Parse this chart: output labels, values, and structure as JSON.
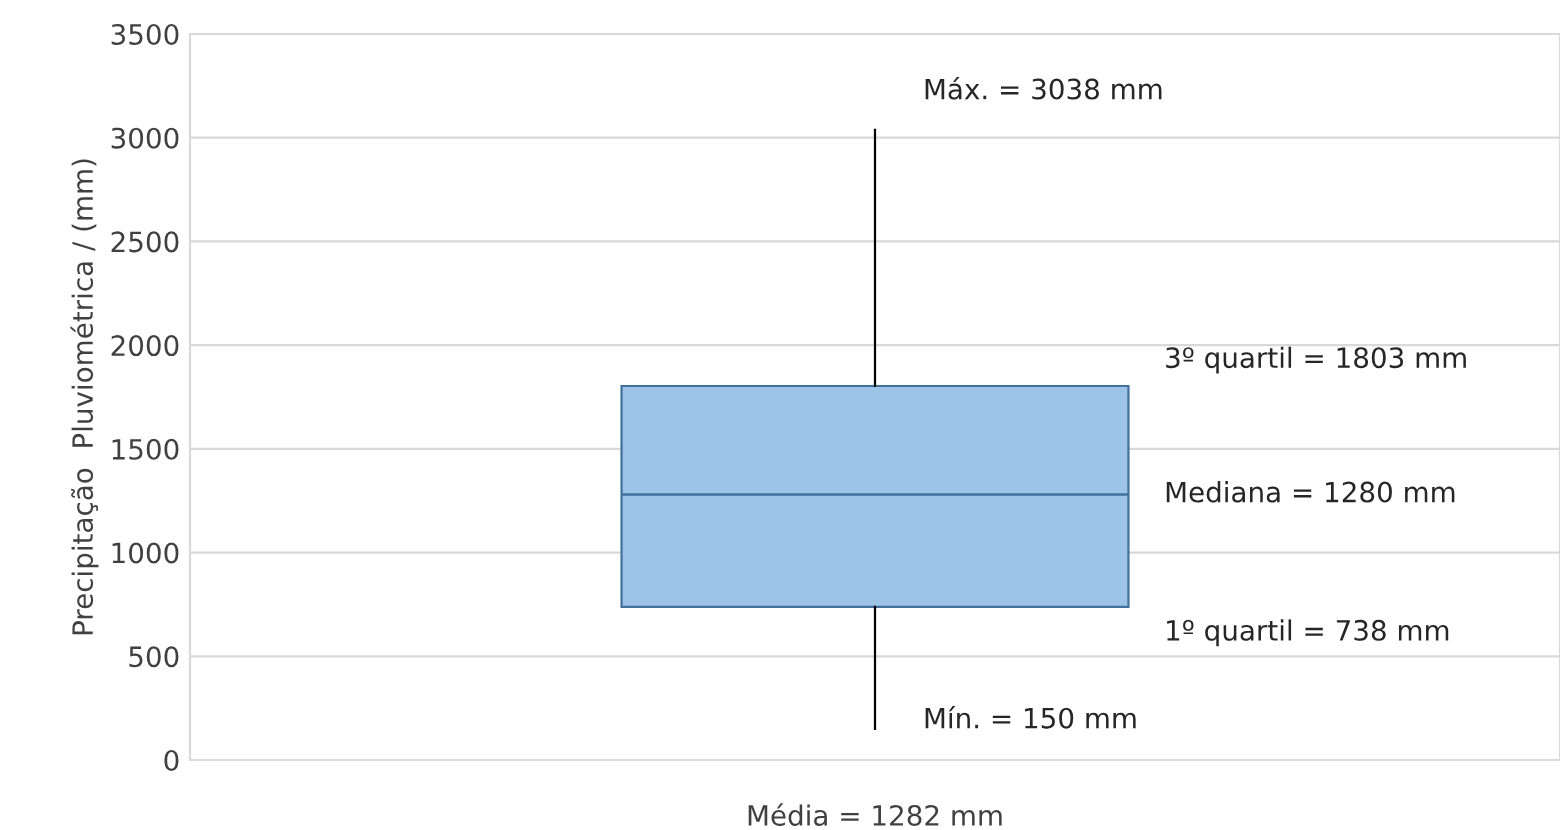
{
  "chart_data": {
    "type": "box",
    "ylabel": "Precipitação  Pluviométrica / (mm)",
    "categories": [
      "Média = 1282 mm"
    ],
    "boxes": [
      {
        "low": 150,
        "q1": 738,
        "median": 1280,
        "q3": 1803,
        "high": 3038
      }
    ],
    "color": "#9dc3e6",
    "ylim": [
      0,
      3500
    ],
    "yticks": [
      0,
      500,
      1000,
      1500,
      2000,
      2500,
      3000,
      3500
    ],
    "grid": "y",
    "annotations": [
      "Máx. = 3038 mm",
      "3º quartil = 1803 mm",
      "Mediana = 1280 mm",
      "1º quartil = 738 mm",
      "Mín. = 150 mm"
    ]
  }
}
